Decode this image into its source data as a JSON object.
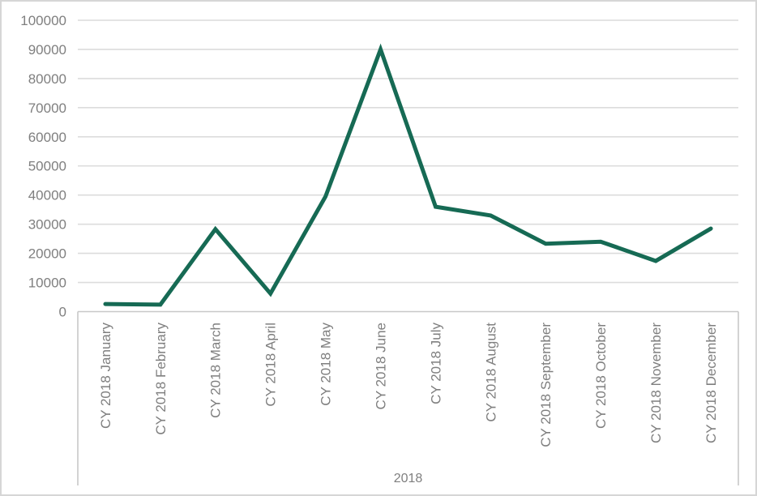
{
  "chart_data": {
    "type": "line",
    "title": "",
    "categories": [
      "CY 2018 January",
      "CY 2018 February",
      "CY 2018 March",
      "CY 2018 April",
      "CY 2018 May",
      "CY 2018 June",
      "CY 2018 July",
      "CY 2018 August",
      "CY 2018 September",
      "CY 2018 October",
      "CY 2018 November",
      "CY 2018 December"
    ],
    "values": [
      2600,
      2400,
      28300,
      6200,
      39500,
      90000,
      36000,
      33000,
      23300,
      24000,
      17400,
      28500
    ],
    "x_group_label": "2018",
    "xlabel": "",
    "ylabel": "",
    "ylim": [
      0,
      100000
    ],
    "ytick_step": 10000,
    "ytick_labels": [
      "0",
      "10000",
      "20000",
      "30000",
      "40000",
      "50000",
      "60000",
      "70000",
      "80000",
      "90000",
      "100000"
    ],
    "grid": "horizontal",
    "legend": "none",
    "markers": "none",
    "colors": {
      "line": "#166a54",
      "gridline": "#dcdcdc",
      "axis_line": "#c8c8c8",
      "bracket_line": "#c8c8c8",
      "label_text": "#7f7f7f",
      "background": "#ffffff",
      "border": "#d6d6d6"
    }
  }
}
